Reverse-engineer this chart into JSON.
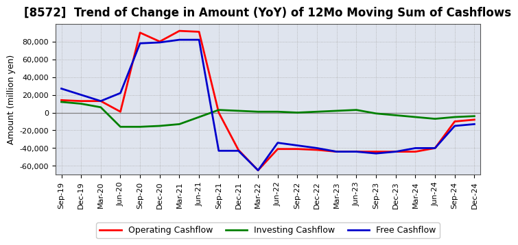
{
  "title": "[8572]  Trend of Change in Amount (YoY) of 12Mo Moving Sum of Cashflows",
  "ylabel": "Amount (million yen)",
  "x_labels": [
    "Sep-19",
    "Dec-19",
    "Mar-20",
    "Jun-20",
    "Sep-20",
    "Dec-20",
    "Mar-21",
    "Jun-21",
    "Sep-21",
    "Dec-21",
    "Mar-22",
    "Jun-22",
    "Sep-22",
    "Dec-22",
    "Mar-23",
    "Jun-23",
    "Sep-23",
    "Dec-23",
    "Mar-24",
    "Jun-24",
    "Sep-24",
    "Dec-24"
  ],
  "operating": [
    14000,
    13000,
    13000,
    1000,
    90000,
    80000,
    92000,
    91000,
    0,
    -42000,
    -65000,
    -41000,
    -41000,
    -42000,
    -44000,
    -44000,
    -44000,
    -44000,
    -44000,
    -40000,
    -10000,
    -8000
  ],
  "investing": [
    12000,
    10000,
    6000,
    -16000,
    -16000,
    -15000,
    -13000,
    -5000,
    3000,
    2000,
    1000,
    1000,
    0,
    1000,
    2000,
    3000,
    -1000,
    -3000,
    -5000,
    -7000,
    -5000,
    -4000
  ],
  "free": [
    27000,
    20000,
    13000,
    22000,
    78000,
    79000,
    82000,
    82000,
    -43000,
    -43000,
    -65000,
    -34000,
    -37000,
    -40000,
    -44000,
    -44000,
    -46000,
    -44000,
    -40000,
    -40000,
    -15000,
    -13000
  ],
  "operating_color": "#ff0000",
  "investing_color": "#008000",
  "free_color": "#0000cc",
  "ylim": [
    -70000,
    100000
  ],
  "yticks": [
    -60000,
    -40000,
    -20000,
    0,
    20000,
    40000,
    60000,
    80000
  ],
  "plot_bg": "#dfe4ee",
  "fig_bg": "#ffffff",
  "grid_color": "#aaaaaa",
  "zero_line_color": "#808080",
  "legend_labels": [
    "Operating Cashflow",
    "Investing Cashflow",
    "Free Cashflow"
  ],
  "title_fontsize": 12,
  "label_fontsize": 9,
  "tick_fontsize": 8,
  "line_width": 2.0
}
